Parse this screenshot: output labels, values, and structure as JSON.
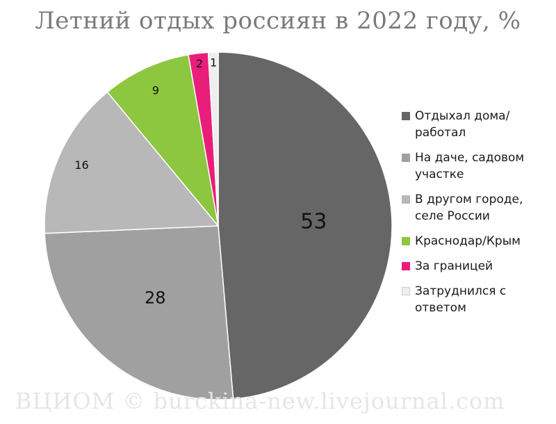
{
  "chart_data": {
    "type": "pie",
    "title": "Летний отдых россиян в 2022 году, %",
    "start": "top",
    "direction": "clockwise",
    "slices": [
      {
        "label": "Отдыхал дома/работал",
        "value": 53,
        "color": "#666666"
      },
      {
        "label": "На даче, садовом участке",
        "value": 28,
        "color": "#a0a0a0"
      },
      {
        "label": "В другом городе, селе России",
        "value": 16,
        "color": "#b8b8b8"
      },
      {
        "label": "Краснодар/Крым",
        "value": 9,
        "color": "#8dc63f"
      },
      {
        "label": "За границей",
        "value": 2,
        "color": "#e91e7a"
      },
      {
        "label": "Затруднился с ответом",
        "value": 1,
        "color": "#eeeeee"
      }
    ],
    "legend_position": "right"
  },
  "watermark": "ВЦИОМ © burckina-new.livejournal.com"
}
